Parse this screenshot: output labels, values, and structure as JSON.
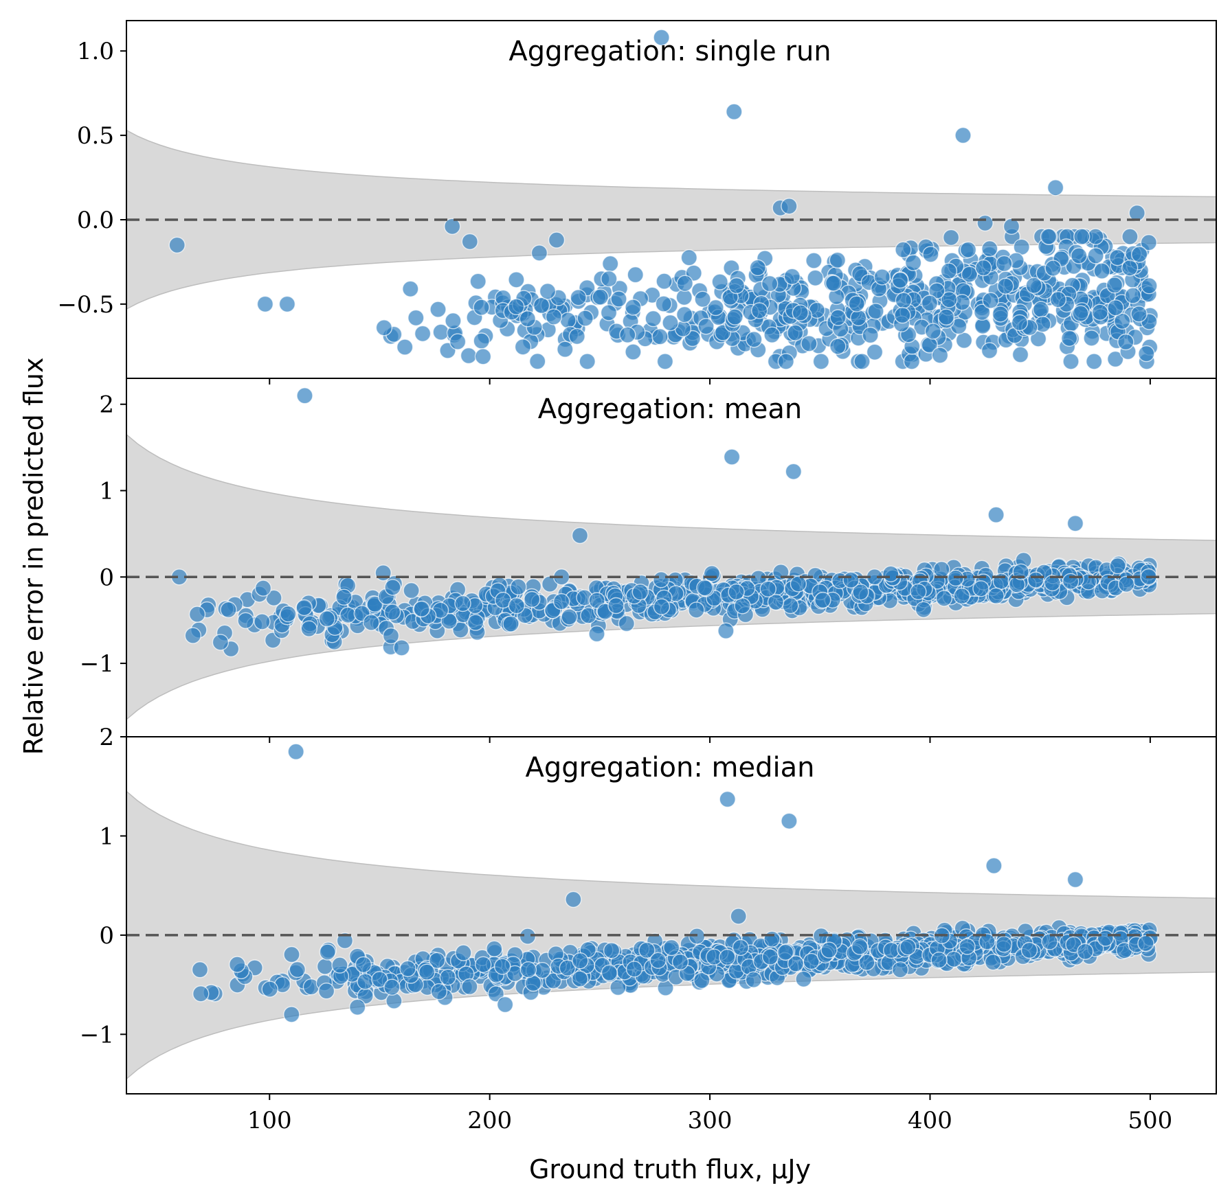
{
  "figure": {
    "xlabel": "Ground truth flux, μJy",
    "ylabel": "Relative error in predicted flux"
  },
  "chart_data": [
    {
      "type": "scatter",
      "title": "Aggregation: single run",
      "xlim": [
        35,
        530
      ],
      "ylim": [
        -0.94,
        1.18
      ],
      "yticks": [
        -0.5,
        0.0,
        0.5,
        1.0
      ],
      "ytick_labels": [
        "−0.5",
        "0.0",
        "0.5",
        "1.0"
      ],
      "xticks": [
        100,
        200,
        300,
        400,
        500
      ],
      "xtick_labels": [
        "100",
        "200",
        "300",
        "400",
        "500"
      ],
      "show_xtick_labels": false,
      "band": {
        "coef": 0.53
      },
      "reference_line": 0,
      "outliers": [
        [
          58,
          -0.15
        ],
        [
          98,
          -0.5
        ],
        [
          108,
          -0.5
        ],
        [
          152,
          -0.64
        ],
        [
          164,
          -0.41
        ],
        [
          183,
          -0.04
        ],
        [
          191,
          -0.13
        ],
        [
          278,
          1.08
        ],
        [
          311,
          0.64
        ],
        [
          332,
          0.07
        ],
        [
          336,
          0.08
        ],
        [
          415,
          0.5
        ],
        [
          457,
          0.19
        ],
        [
          494,
          0.04
        ],
        [
          425,
          -0.02
        ],
        [
          437,
          -0.04
        ]
      ],
      "cloud": {
        "seed": 11,
        "n": 620,
        "x_start": 150,
        "x_end": 500,
        "density_power": 0.55,
        "center_start": -0.62,
        "center_end": -0.42,
        "spread_start": 0.1,
        "spread_end": 0.22,
        "floor": -0.84,
        "ceiling": -0.1
      }
    },
    {
      "type": "scatter",
      "title": "Aggregation: mean",
      "xlim": [
        35,
        530
      ],
      "ylim": [
        -1.85,
        2.3
      ],
      "yticks": [
        -1,
        0,
        1,
        2
      ],
      "ytick_labels": [
        "−1",
        "0",
        "1",
        "2"
      ],
      "xticks": [
        100,
        200,
        300,
        400,
        500
      ],
      "xtick_labels": [
        "100",
        "200",
        "300",
        "400",
        "500"
      ],
      "show_xtick_labels": false,
      "band": {
        "coef": 1.65
      },
      "reference_line": 0,
      "outliers": [
        [
          116,
          2.1
        ],
        [
          310,
          1.39
        ],
        [
          338,
          1.22
        ],
        [
          430,
          0.72
        ],
        [
          466,
          0.62
        ],
        [
          241,
          0.48
        ],
        [
          59,
          0.0
        ],
        [
          160,
          -0.82
        ]
      ],
      "cloud": {
        "seed": 23,
        "n": 900,
        "x_start": 55,
        "x_end": 500,
        "density_power": 0.6,
        "center_start": -0.5,
        "center_end": 0.0,
        "spread_start": 0.18,
        "spread_end": 0.06,
        "floor": -0.84,
        "ceiling": 0.28
      }
    },
    {
      "type": "scatter",
      "title": "Aggregation: median",
      "xlim": [
        35,
        530
      ],
      "ylim": [
        -1.6,
        2.0
      ],
      "yticks": [
        -1,
        0,
        1,
        2
      ],
      "ytick_labels": [
        "−1",
        "0",
        "1",
        "2"
      ],
      "xticks": [
        100,
        200,
        300,
        400,
        500
      ],
      "xtick_labels": [
        "100",
        "200",
        "300",
        "400",
        "500"
      ],
      "show_xtick_labels": true,
      "band": {
        "coef": 1.45
      },
      "reference_line": 0,
      "outliers": [
        [
          112,
          1.85
        ],
        [
          308,
          1.37
        ],
        [
          336,
          1.15
        ],
        [
          429,
          0.7
        ],
        [
          466,
          0.56
        ],
        [
          238,
          0.36
        ],
        [
          313,
          0.19
        ],
        [
          207,
          -0.7
        ],
        [
          110,
          -0.8
        ]
      ],
      "cloud": {
        "seed": 37,
        "n": 900,
        "x_start": 55,
        "x_end": 500,
        "density_power": 0.6,
        "center_start": -0.52,
        "center_end": -0.05,
        "spread_start": 0.14,
        "spread_end": 0.06,
        "floor": -0.82,
        "ceiling": 0.22
      }
    }
  ]
}
